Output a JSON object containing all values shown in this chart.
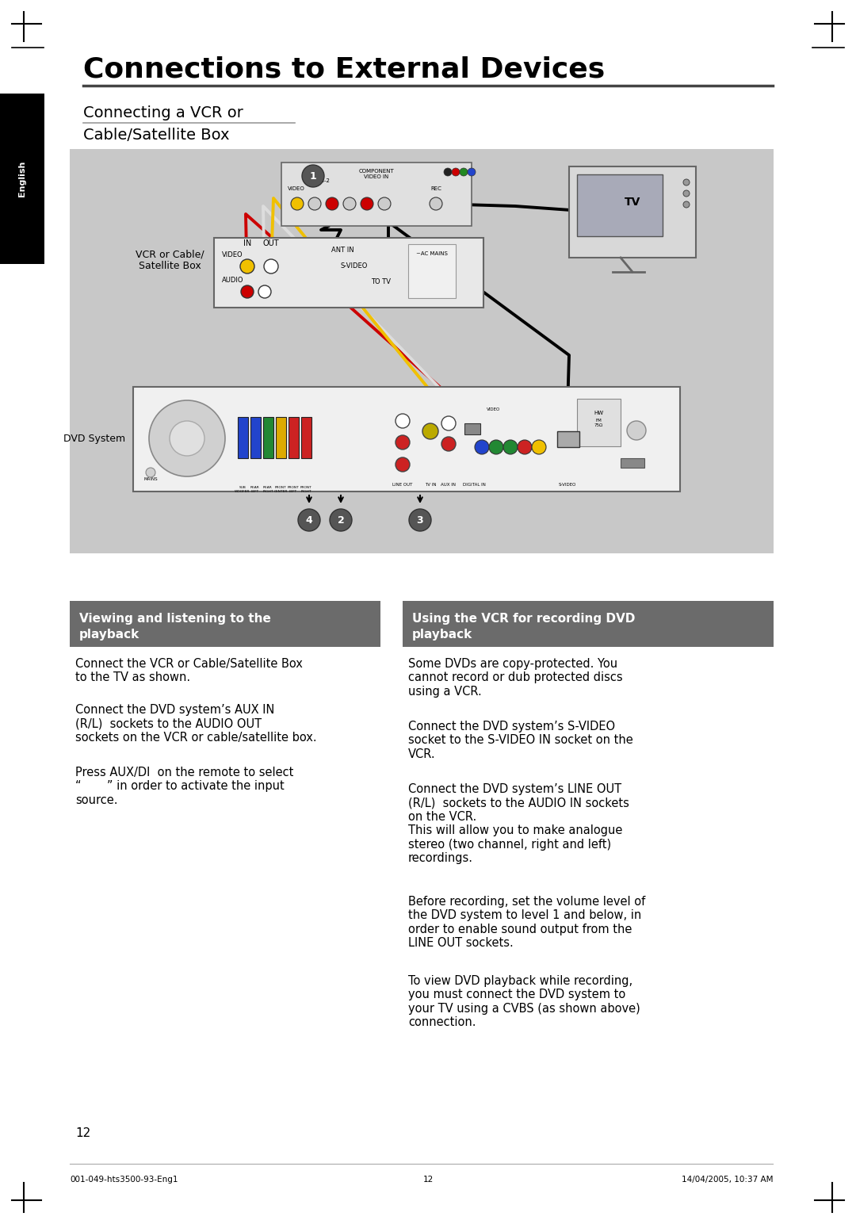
{
  "title": "Connections to External Devices",
  "bg_color": "#ffffff",
  "sidebar_color": "#000000",
  "sidebar_text": "English",
  "diagram_bg": "#c8c8c8",
  "section_header_bg": "#6b6b6b",
  "section_header_color": "#ffffff",
  "left_section_title": "Viewing and listening to the\nplayback",
  "right_section_title": "Using the VCR for recording DVD\nplayback",
  "left_section_text": [
    "Connect the VCR or Cable/Satellite Box\nto the TV as shown.",
    "Connect the DVD system’s AUX IN\n(R/L)  sockets to the AUDIO OUT\nsockets on the VCR or cable/satellite box.",
    "Press AUX/DI  on the remote to select\n“       ” in order to activate the input\nsource."
  ],
  "right_section_text": [
    "Some DVDs are copy-protected. You\ncannot record or dub protected discs\nusing a VCR.",
    "Connect the DVD system’s S-VIDEO\nsocket to the S-VIDEO IN socket on the\nVCR.",
    "Connect the DVD system’s LINE OUT\n(R/L)  sockets to the AUDIO IN sockets\non the VCR.\nThis will allow you to make analogue\nstereo (two channel, right and left)\nrecordings.",
    "Before recording, set the volume level of\nthe DVD system to level 1 and below, in\norder to enable sound output from the\nLINE OUT sockets.",
    "To view DVD playback while recording,\nyou must connect the DVD system to\nyour TV using a CVBS (as shown above)\nconnection."
  ],
  "footer_left": "001-049-hts3500-93-Eng1",
  "footer_center": "12",
  "footer_right": "14/04/2005, 10:37 AM",
  "page_number": "12",
  "vcr_label": "VCR or Cable/\nSatellite Box",
  "dvd_label": "DVD System",
  "tv_label": "TV"
}
